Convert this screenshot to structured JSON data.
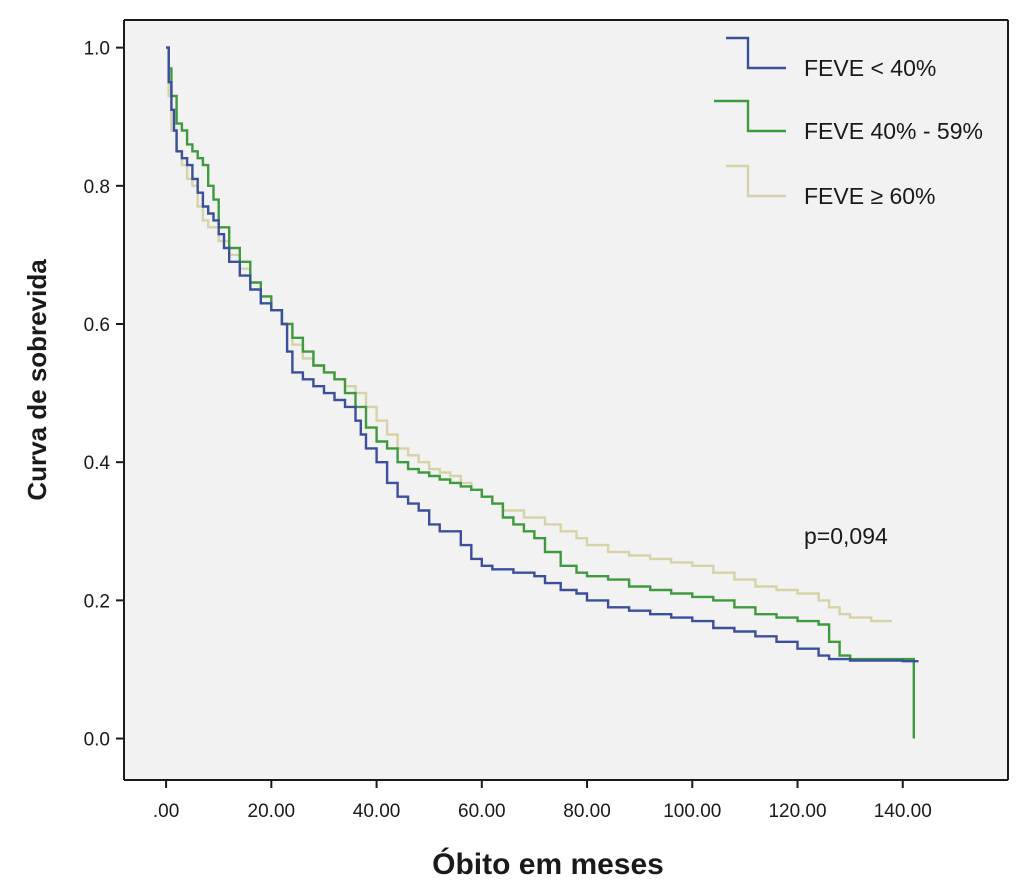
{
  "chart_data": {
    "type": "line",
    "step": true,
    "xlabel": "Óbito em meses",
    "ylabel": "Curva de sobrevida",
    "xlim": [
      -8,
      160
    ],
    "ylim": [
      -0.06,
      1.04
    ],
    "x_ticks": [
      0,
      20,
      40,
      60,
      80,
      100,
      120,
      140
    ],
    "x_tick_labels": [
      ".00",
      "20.00",
      "40.00",
      "60.00",
      "80.00",
      "100.00",
      "120.00",
      "140.00"
    ],
    "y_ticks": [
      0,
      0.2,
      0.4,
      0.6,
      0.8,
      1.0
    ],
    "y_tick_labels": [
      "0.0",
      "0.2",
      "0.4",
      "0.6",
      "0.8",
      "1.0"
    ],
    "grid": false,
    "legend_position": "top-right",
    "annotation": "p=0,094",
    "colors": {
      "plot_background": "#f2f2f2",
      "axis": "#1a1a1a"
    },
    "series": [
      {
        "name": "FEVE < 40%",
        "color": "#3b4f9c",
        "x": [
          0,
          0.5,
          1,
          1.5,
          2,
          3,
          4,
          5,
          6,
          7,
          8,
          9,
          10,
          11,
          12,
          14,
          16,
          18,
          20,
          22,
          23,
          24,
          26,
          28,
          30,
          32,
          34,
          36,
          37,
          38,
          40,
          42,
          44,
          46,
          48,
          50,
          52,
          54,
          56,
          58,
          60,
          62,
          64,
          66,
          68,
          70,
          72,
          75,
          78,
          80,
          84,
          88,
          92,
          96,
          100,
          104,
          108,
          112,
          116,
          120,
          124,
          126,
          130,
          135,
          140,
          143
        ],
        "y": [
          1.0,
          0.95,
          0.91,
          0.88,
          0.85,
          0.84,
          0.83,
          0.81,
          0.79,
          0.77,
          0.76,
          0.75,
          0.73,
          0.71,
          0.69,
          0.67,
          0.65,
          0.63,
          0.62,
          0.6,
          0.56,
          0.53,
          0.52,
          0.51,
          0.5,
          0.49,
          0.48,
          0.46,
          0.44,
          0.42,
          0.4,
          0.37,
          0.35,
          0.34,
          0.33,
          0.31,
          0.3,
          0.3,
          0.28,
          0.26,
          0.25,
          0.245,
          0.245,
          0.24,
          0.24,
          0.235,
          0.225,
          0.215,
          0.21,
          0.2,
          0.19,
          0.185,
          0.18,
          0.175,
          0.17,
          0.16,
          0.155,
          0.148,
          0.14,
          0.13,
          0.12,
          0.115,
          0.113,
          0.113,
          0.112,
          0.112
        ]
      },
      {
        "name": "FEVE 40% - 59%",
        "color": "#3f9a3f",
        "x": [
          0,
          0.5,
          1,
          2,
          3,
          4,
          5,
          6,
          7,
          8,
          9,
          10,
          12,
          14,
          16,
          18,
          20,
          22,
          24,
          26,
          28,
          30,
          32,
          34,
          36,
          38,
          40,
          42,
          44,
          46,
          48,
          50,
          52,
          54,
          56,
          58,
          60,
          62,
          64,
          66,
          68,
          70,
          72,
          75,
          78,
          80,
          84,
          88,
          92,
          96,
          100,
          104,
          108,
          112,
          116,
          120,
          124,
          126,
          128,
          130,
          135,
          140,
          142,
          142.1
        ],
        "y": [
          1.0,
          0.97,
          0.93,
          0.89,
          0.88,
          0.86,
          0.85,
          0.84,
          0.83,
          0.8,
          0.78,
          0.74,
          0.71,
          0.69,
          0.66,
          0.64,
          0.62,
          0.6,
          0.58,
          0.56,
          0.54,
          0.53,
          0.52,
          0.5,
          0.48,
          0.45,
          0.43,
          0.42,
          0.4,
          0.39,
          0.385,
          0.38,
          0.375,
          0.37,
          0.365,
          0.36,
          0.35,
          0.34,
          0.32,
          0.31,
          0.3,
          0.29,
          0.27,
          0.25,
          0.24,
          0.235,
          0.23,
          0.22,
          0.215,
          0.21,
          0.205,
          0.2,
          0.19,
          0.18,
          0.175,
          0.17,
          0.165,
          0.14,
          0.12,
          0.115,
          0.115,
          0.115,
          0.115,
          0.0
        ]
      },
      {
        "name": "FEVE ≥ 60%",
        "color": "#d7d3a8",
        "x": [
          0,
          0.5,
          1,
          2,
          3,
          4,
          5,
          6,
          7,
          8,
          10,
          12,
          14,
          16,
          18,
          20,
          22,
          24,
          26,
          28,
          30,
          32,
          34,
          36,
          38,
          40,
          42,
          44,
          46,
          48,
          50,
          52,
          54,
          56,
          58,
          60,
          62,
          64,
          66,
          68,
          70,
          72,
          75,
          78,
          80,
          84,
          88,
          92,
          96,
          100,
          104,
          108,
          112,
          116,
          120,
          124,
          126,
          128,
          130,
          134,
          138
        ],
        "y": [
          1.0,
          0.93,
          0.88,
          0.85,
          0.83,
          0.81,
          0.8,
          0.77,
          0.75,
          0.74,
          0.72,
          0.7,
          0.68,
          0.66,
          0.64,
          0.62,
          0.6,
          0.57,
          0.55,
          0.54,
          0.53,
          0.52,
          0.51,
          0.5,
          0.48,
          0.46,
          0.44,
          0.42,
          0.41,
          0.4,
          0.39,
          0.385,
          0.38,
          0.37,
          0.36,
          0.35,
          0.34,
          0.33,
          0.33,
          0.32,
          0.32,
          0.31,
          0.3,
          0.29,
          0.28,
          0.27,
          0.265,
          0.26,
          0.255,
          0.25,
          0.24,
          0.23,
          0.22,
          0.215,
          0.21,
          0.2,
          0.19,
          0.18,
          0.175,
          0.17,
          0.17
        ]
      }
    ]
  }
}
